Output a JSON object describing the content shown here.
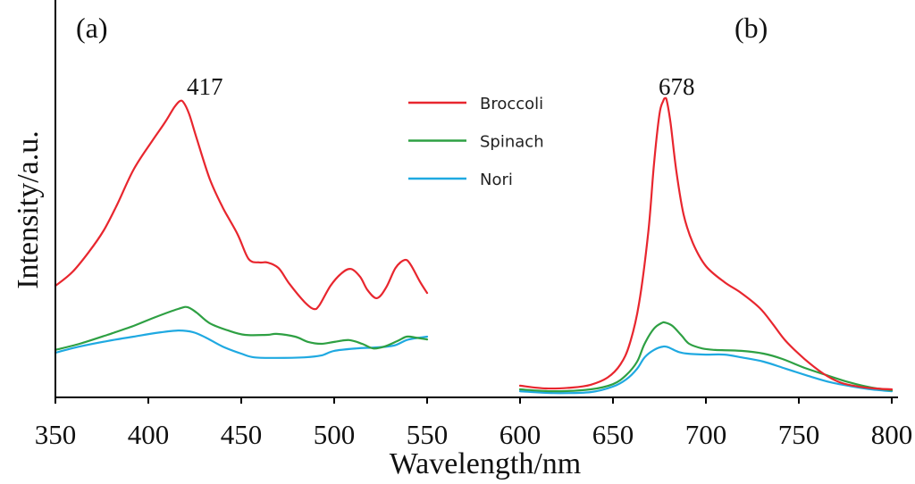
{
  "chart_data": {
    "type": "line",
    "xlabel": "Wavelength/nm",
    "ylabel": "Intensity/a.u.",
    "xlim": [
      350,
      800
    ],
    "ylim": [
      0,
      1.29
    ],
    "xticks": [
      350,
      400,
      450,
      500,
      550,
      600,
      650,
      700,
      750,
      800
    ],
    "yticks": [],
    "grid": false,
    "legend": "top-center",
    "axis_color": "#000000",
    "panels": [
      {
        "label": "(a)",
        "xrange": [
          350,
          550
        ],
        "peak_label": "417",
        "series": [
          {
            "name": "Broccoli",
            "color": "#e8262e",
            "points": [
              [
                350,
                0.362
              ],
              [
                359,
                0.406
              ],
              [
                368,
                0.472
              ],
              [
                376,
                0.542
              ],
              [
                383,
                0.623
              ],
              [
                392,
                0.739
              ],
              [
                402,
                0.832
              ],
              [
                409,
                0.893
              ],
              [
                414,
                0.942
              ],
              [
                417,
                0.962
              ],
              [
                419,
                0.957
              ],
              [
                422,
                0.919
              ],
              [
                426,
                0.841
              ],
              [
                433,
                0.71
              ],
              [
                440,
                0.617
              ],
              [
                448,
                0.53
              ],
              [
                454,
                0.449
              ],
              [
                460,
                0.438
              ],
              [
                464,
                0.438
              ],
              [
                470,
                0.42
              ],
              [
                476,
                0.368
              ],
              [
                484,
                0.31
              ],
              [
                489,
                0.287
              ],
              [
                492,
                0.299
              ],
              [
                498,
                0.362
              ],
              [
                504,
                0.403
              ],
              [
                509,
                0.417
              ],
              [
                514,
                0.391
              ],
              [
                518,
                0.348
              ],
              [
                523,
                0.322
              ],
              [
                528,
                0.357
              ],
              [
                533,
                0.42
              ],
              [
                538,
                0.446
              ],
              [
                541,
                0.432
              ],
              [
                546,
                0.377
              ],
              [
                550,
                0.339
              ]
            ]
          },
          {
            "name": "Spinach",
            "color": "#2ea043",
            "points": [
              [
                350,
                0.154
              ],
              [
                363,
                0.174
              ],
              [
                378,
                0.203
              ],
              [
                392,
                0.232
              ],
              [
                404,
                0.261
              ],
              [
                416,
                0.287
              ],
              [
                421,
                0.293
              ],
              [
                426,
                0.275
              ],
              [
                433,
                0.241
              ],
              [
                443,
                0.217
              ],
              [
                452,
                0.203
              ],
              [
                464,
                0.203
              ],
              [
                469,
                0.206
              ],
              [
                479,
                0.197
              ],
              [
                486,
                0.18
              ],
              [
                493,
                0.174
              ],
              [
                500,
                0.18
              ],
              [
                508,
                0.186
              ],
              [
                515,
                0.174
              ],
              [
                521,
                0.159
              ],
              [
                527,
                0.165
              ],
              [
                534,
                0.183
              ],
              [
                539,
                0.197
              ],
              [
                544,
                0.194
              ],
              [
                550,
                0.188
              ]
            ]
          },
          {
            "name": "Nori",
            "color": "#1fa9e1",
            "points": [
              [
                350,
                0.145
              ],
              [
                363,
                0.165
              ],
              [
                378,
                0.183
              ],
              [
                392,
                0.197
              ],
              [
                404,
                0.209
              ],
              [
                416,
                0.217
              ],
              [
                424,
                0.212
              ],
              [
                431,
                0.194
              ],
              [
                440,
                0.165
              ],
              [
                450,
                0.142
              ],
              [
                457,
                0.13
              ],
              [
                469,
                0.128
              ],
              [
                484,
                0.13
              ],
              [
                493,
                0.136
              ],
              [
                500,
                0.151
              ],
              [
                512,
                0.159
              ],
              [
                522,
                0.162
              ],
              [
                532,
                0.168
              ],
              [
                539,
                0.186
              ],
              [
                546,
                0.194
              ],
              [
                550,
                0.197
              ]
            ]
          }
        ]
      },
      {
        "label": "(b)",
        "xrange": [
          600,
          800
        ],
        "peak_label": "678",
        "series": [
          {
            "name": "Broccoli",
            "color": "#e8262e",
            "points": [
              [
                600,
                0.038
              ],
              [
                614,
                0.029
              ],
              [
                628,
                0.032
              ],
              [
                638,
                0.041
              ],
              [
                647,
                0.064
              ],
              [
                654,
                0.107
              ],
              [
                659,
                0.174
              ],
              [
                664,
                0.304
              ],
              [
                669,
                0.536
              ],
              [
                672,
                0.754
              ],
              [
                675,
                0.919
              ],
              [
                677,
                0.962
              ],
              [
                678,
                0.971
              ],
              [
                679,
                0.962
              ],
              [
                681,
                0.89
              ],
              [
                684,
                0.739
              ],
              [
                688,
                0.594
              ],
              [
                693,
                0.501
              ],
              [
                700,
                0.426
              ],
              [
                710,
                0.374
              ],
              [
                719,
                0.339
              ],
              [
                729,
                0.29
              ],
              [
                736,
                0.238
              ],
              [
                743,
                0.183
              ],
              [
                753,
                0.125
              ],
              [
                763,
                0.078
              ],
              [
                772,
                0.049
              ],
              [
                782,
                0.035
              ],
              [
                791,
                0.029
              ],
              [
                800,
                0.026
              ]
            ]
          },
          {
            "name": "Spinach",
            "color": "#2ea043",
            "points": [
              [
                600,
                0.026
              ],
              [
                618,
                0.02
              ],
              [
                638,
                0.026
              ],
              [
                650,
                0.043
              ],
              [
                657,
                0.072
              ],
              [
                663,
                0.116
              ],
              [
                667,
                0.174
              ],
              [
                672,
                0.223
              ],
              [
                676,
                0.241
              ],
              [
                678,
                0.243
              ],
              [
                682,
                0.232
              ],
              [
                687,
                0.2
              ],
              [
                691,
                0.174
              ],
              [
                698,
                0.159
              ],
              [
                705,
                0.154
              ],
              [
                719,
                0.151
              ],
              [
                731,
                0.142
              ],
              [
                741,
                0.125
              ],
              [
                753,
                0.096
              ],
              [
                765,
                0.072
              ],
              [
                777,
                0.049
              ],
              [
                789,
                0.032
              ],
              [
                800,
                0.023
              ]
            ]
          },
          {
            "name": "Nori",
            "color": "#1fa9e1",
            "points": [
              [
                600,
                0.02
              ],
              [
                618,
                0.014
              ],
              [
                638,
                0.017
              ],
              [
                650,
                0.035
              ],
              [
                657,
                0.058
              ],
              [
                663,
                0.093
              ],
              [
                667,
                0.13
              ],
              [
                672,
                0.154
              ],
              [
                677,
                0.165
              ],
              [
                680,
                0.162
              ],
              [
                685,
                0.148
              ],
              [
                690,
                0.142
              ],
              [
                700,
                0.139
              ],
              [
                710,
                0.139
              ],
              [
                719,
                0.13
              ],
              [
                731,
                0.116
              ],
              [
                743,
                0.093
              ],
              [
                755,
                0.07
              ],
              [
                767,
                0.049
              ],
              [
                779,
                0.035
              ],
              [
                789,
                0.026
              ],
              [
                800,
                0.02
              ]
            ]
          }
        ]
      }
    ]
  }
}
